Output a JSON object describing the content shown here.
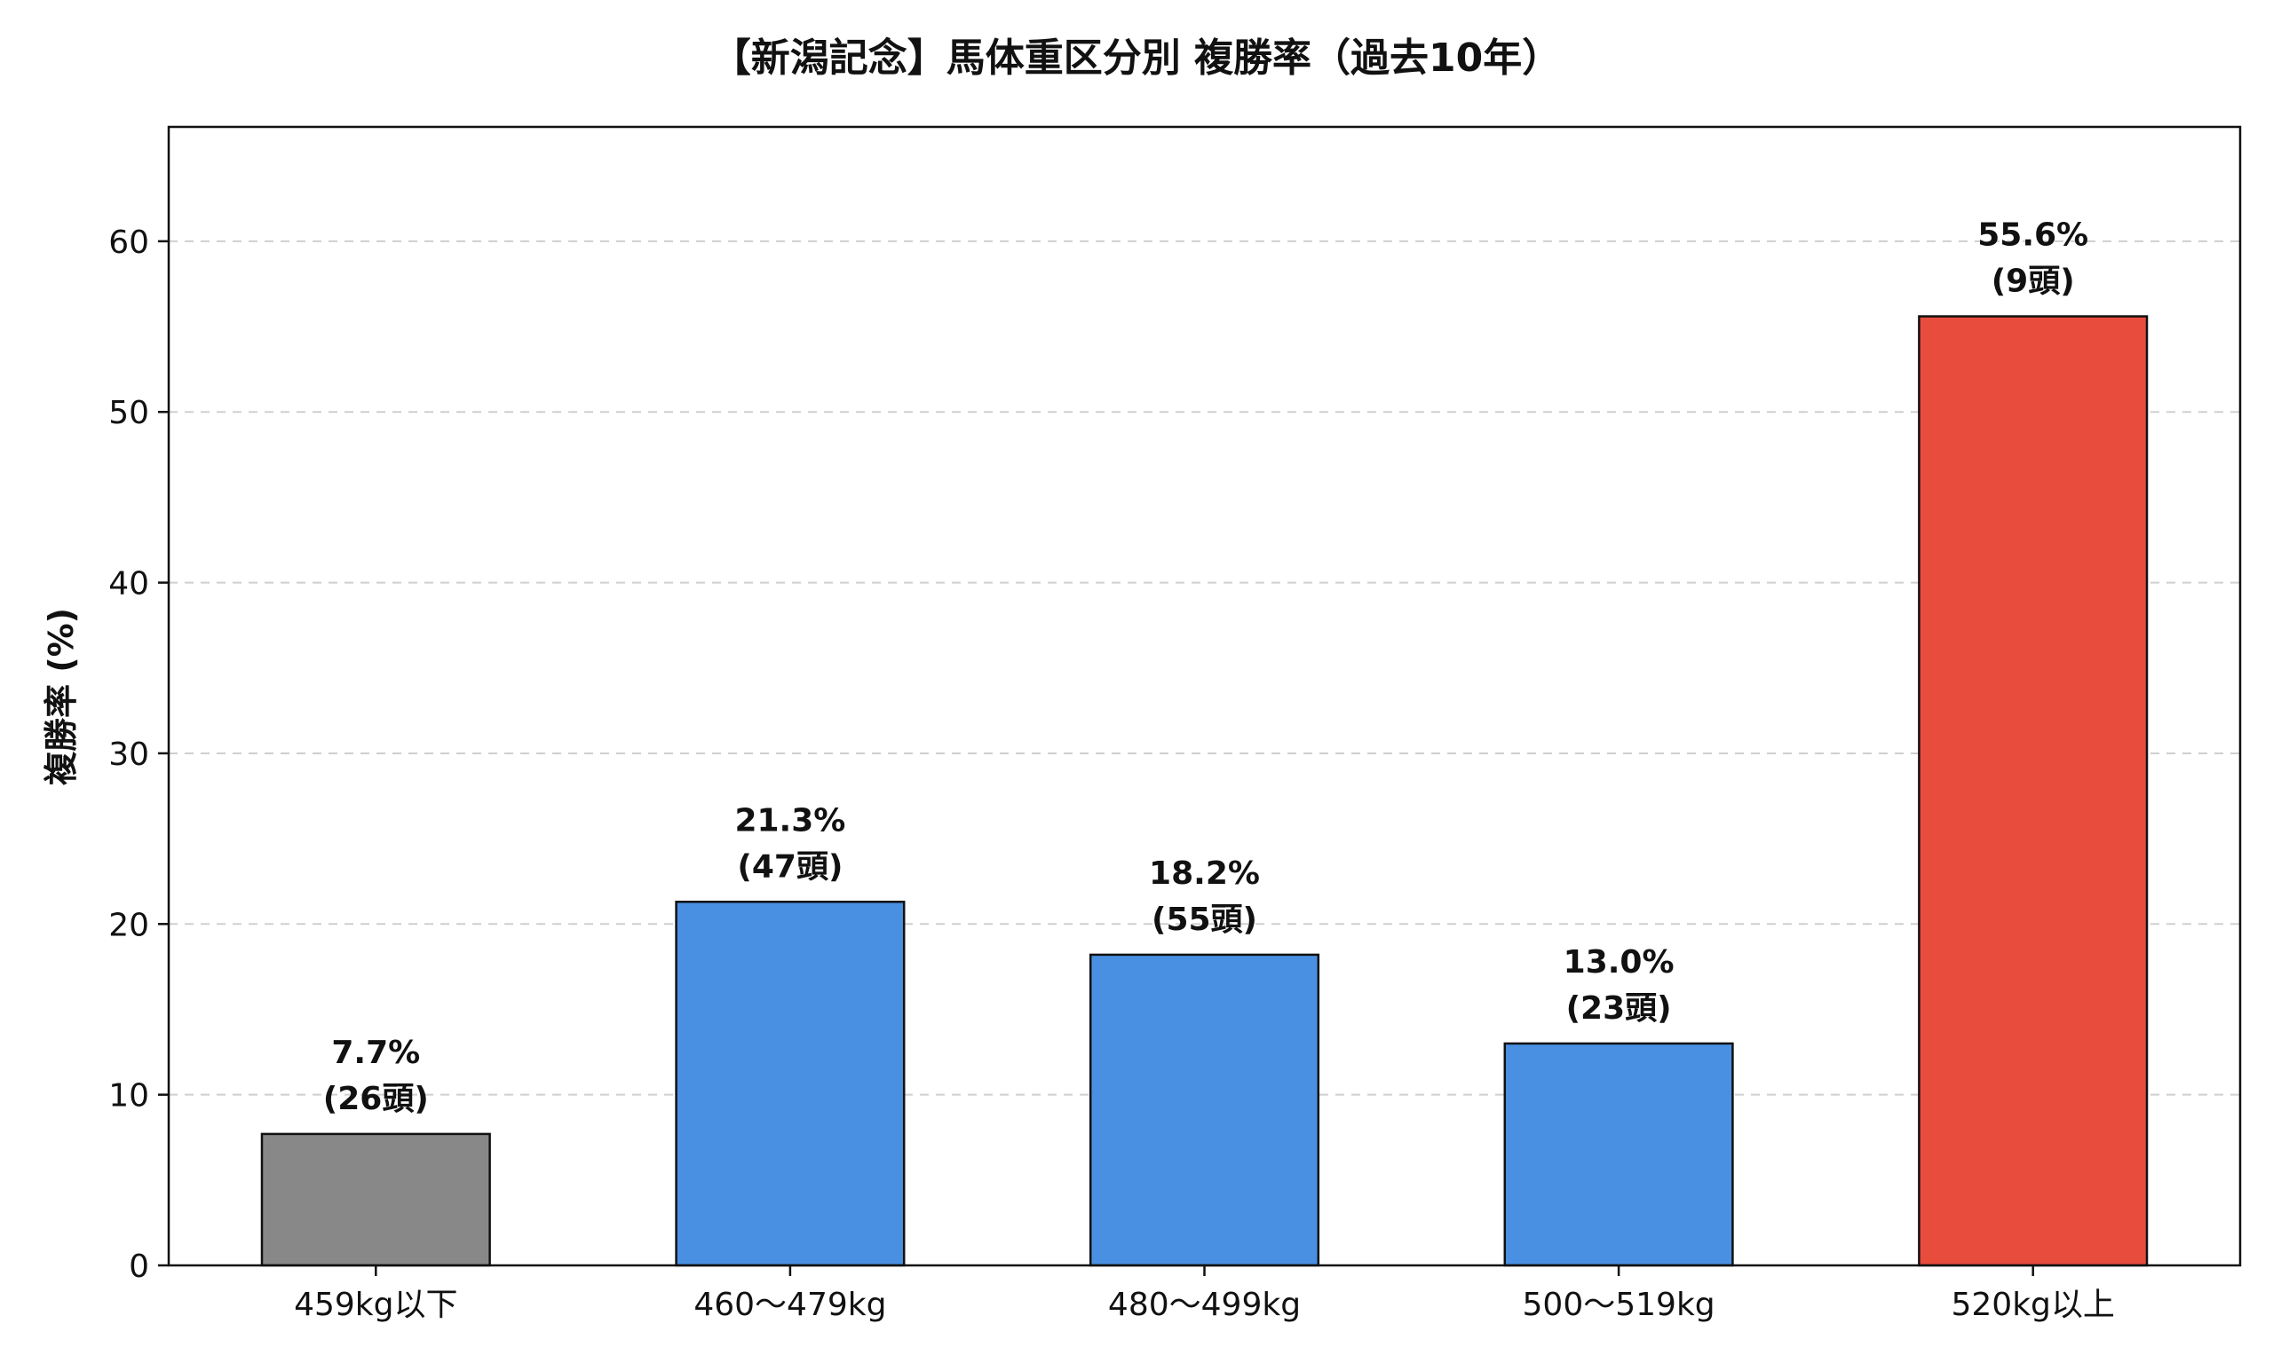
{
  "chart_data": {
    "type": "bar",
    "title": "【新潟記念】馬体重区分別 複勝率（過去10年）",
    "xlabel": "",
    "ylabel": "複勝率 (%)",
    "ylim": [
      0,
      66.7
    ],
    "yticks": [
      0,
      10,
      20,
      30,
      40,
      50,
      60
    ],
    "grid": "horizontal dashed",
    "categories": [
      "459kg以下",
      "460～479kg",
      "480～499kg",
      "500～519kg",
      "520kg以上"
    ],
    "values": [
      7.7,
      21.3,
      18.2,
      13.0,
      55.6
    ],
    "value_labels": [
      "7.7%",
      "21.3%",
      "18.2%",
      "13.0%",
      "55.6%"
    ],
    "counts": [
      "(26頭)",
      "(47頭)",
      "(55頭)",
      "(23頭)",
      "(9頭)"
    ],
    "bar_colors": [
      "#888888",
      "#4a90e2",
      "#4a90e2",
      "#4a90e2",
      "#e74c3c"
    ]
  }
}
